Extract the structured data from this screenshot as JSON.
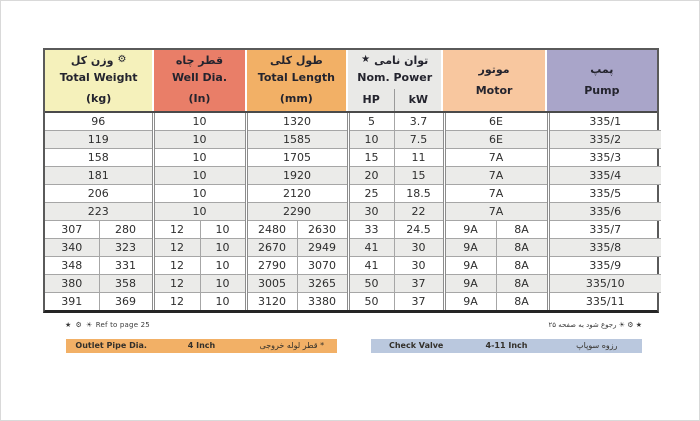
{
  "icons": {
    "gear": "⚙",
    "star": "★",
    "sun": "☀"
  },
  "header": {
    "columns": [
      {
        "id": "weight",
        "fa": "وزن کل",
        "en": "Total Weight",
        "unit": "(kg)",
        "color": "#f5f1bb"
      },
      {
        "id": "well",
        "fa": "قطر چاه",
        "en": "Well Dia.",
        "unit": "(In)",
        "color": "#e97e68"
      },
      {
        "id": "length",
        "fa": "طول کلی",
        "en": "Total Length",
        "unit": "(mm)",
        "color": "#f2b066"
      },
      {
        "id": "power",
        "fa": "توان نامی",
        "en": "Nom. Power",
        "sub": [
          "HP",
          "kW"
        ],
        "color": "#e9e9e7"
      },
      {
        "id": "motor",
        "fa": "موتور",
        "en": "Motor",
        "color": "#f8c79f"
      },
      {
        "id": "pump",
        "fa": "پمپ",
        "en": "Pump",
        "color": "#a9a5c9"
      }
    ]
  },
  "table": {
    "rows": [
      {
        "weight": [
          "96"
        ],
        "well": [
          "10"
        ],
        "length": [
          "1320"
        ],
        "hp": "5",
        "kw": "3.7",
        "motor": [
          "6E"
        ],
        "pump": "335/1"
      },
      {
        "weight": [
          "119"
        ],
        "well": [
          "10"
        ],
        "length": [
          "1585"
        ],
        "hp": "10",
        "kw": "7.5",
        "motor": [
          "6E"
        ],
        "pump": "335/2"
      },
      {
        "weight": [
          "158"
        ],
        "well": [
          "10"
        ],
        "length": [
          "1705"
        ],
        "hp": "15",
        "kw": "11",
        "motor": [
          "7A"
        ],
        "pump": "335/3"
      },
      {
        "weight": [
          "181"
        ],
        "well": [
          "10"
        ],
        "length": [
          "1920"
        ],
        "hp": "20",
        "kw": "15",
        "motor": [
          "7A"
        ],
        "pump": "335/4"
      },
      {
        "weight": [
          "206"
        ],
        "well": [
          "10"
        ],
        "length": [
          "2120"
        ],
        "hp": "25",
        "kw": "18.5",
        "motor": [
          "7A"
        ],
        "pump": "335/5"
      },
      {
        "weight": [
          "223"
        ],
        "well": [
          "10"
        ],
        "length": [
          "2290"
        ],
        "hp": "30",
        "kw": "22",
        "motor": [
          "7A"
        ],
        "pump": "335/6"
      },
      {
        "weight": [
          "307",
          "280"
        ],
        "well": [
          "12",
          "10"
        ],
        "length": [
          "2480",
          "2630"
        ],
        "hp": "33",
        "kw": "24.5",
        "motor": [
          "9A",
          "8A"
        ],
        "pump": "335/7"
      },
      {
        "weight": [
          "340",
          "323"
        ],
        "well": [
          "12",
          "10"
        ],
        "length": [
          "2670",
          "2949"
        ],
        "hp": "41",
        "kw": "30",
        "motor": [
          "9A",
          "8A"
        ],
        "pump": "335/8"
      },
      {
        "weight": [
          "348",
          "331"
        ],
        "well": [
          "12",
          "10"
        ],
        "length": [
          "2790",
          "3070"
        ],
        "hp": "41",
        "kw": "30",
        "motor": [
          "9A",
          "8A"
        ],
        "pump": "335/9"
      },
      {
        "weight": [
          "380",
          "358"
        ],
        "well": [
          "12",
          "10"
        ],
        "length": [
          "3005",
          "3265"
        ],
        "hp": "50",
        "kw": "37",
        "motor": [
          "9A",
          "8A"
        ],
        "pump": "335/10"
      },
      {
        "weight": [
          "391",
          "369"
        ],
        "well": [
          "12",
          "10"
        ],
        "length": [
          "3120",
          "3380"
        ],
        "hp": "50",
        "kw": "37",
        "motor": [
          "9A",
          "8A"
        ],
        "pump": "335/11"
      }
    ]
  },
  "footnotes": {
    "symbols": "★ ⚙ ☀",
    "left_text": "Ref to page 25",
    "right_text": "رجوع شود به صفحه ۲۵"
  },
  "bars": {
    "outlet": {
      "en": "Outlet Pipe Dia.",
      "value": "4 Inch",
      "fa": "* قطر لوله خروجی",
      "color": "#f2b066"
    },
    "check": {
      "en": "Check Valve",
      "value": "4-11 Inch",
      "fa": "رزوه سوپاپ",
      "color": "#bac8de"
    }
  },
  "colors": {
    "row_stripe": "#ebebe9",
    "border_outer": "#5a5a5a",
    "border_inner": "#a6a6a6"
  }
}
